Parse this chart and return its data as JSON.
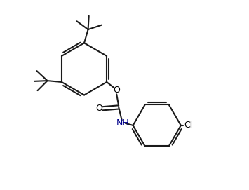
{
  "background_color": "#ffffff",
  "line_color": "#1a1a1a",
  "o_color": "#000000",
  "n_color": "#00008b",
  "cl_color": "#000000",
  "line_width": 1.5,
  "figsize": [
    3.55,
    2.71
  ],
  "dpi": 100,
  "xlim": [
    0,
    9.5
  ],
  "ylim": [
    0,
    7.2
  ]
}
